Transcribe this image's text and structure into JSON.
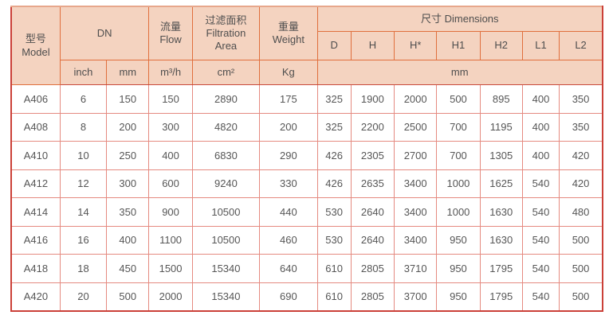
{
  "table": {
    "header": {
      "model_zh": "型号",
      "model_en": "Model",
      "dn": "DN",
      "flow_zh": "流量",
      "flow_en": "Flow",
      "filtration_zh": "过滤面积",
      "filtration_en_line1": "Filtration",
      "filtration_en_line2": "Area",
      "weight_zh": "重量",
      "weight_en": "Weight",
      "dimensions": "尺寸 Dimensions",
      "dim_columns": [
        "D",
        "H",
        "H*",
        "H1",
        "H2",
        "L1",
        "L2"
      ],
      "units": {
        "inch": "inch",
        "mm": "mm",
        "flow": "m³/h",
        "area": "cm²",
        "weight": "Kg",
        "dim_mm": "mm"
      }
    },
    "column_keys": [
      "model",
      "dn-inch",
      "dn-mm",
      "flow",
      "filtration-area",
      "weight",
      "d",
      "h",
      "h-star",
      "h1",
      "h2",
      "l1",
      "l2"
    ],
    "rows": [
      [
        "A406",
        "6",
        "150",
        "150",
        "2890",
        "175",
        "325",
        "1900",
        "2000",
        "500",
        "895",
        "400",
        "350"
      ],
      [
        "A408",
        "8",
        "200",
        "300",
        "4820",
        "200",
        "325",
        "2200",
        "2500",
        "700",
        "1195",
        "400",
        "350"
      ],
      [
        "A410",
        "10",
        "250",
        "400",
        "6830",
        "290",
        "426",
        "2305",
        "2700",
        "700",
        "1305",
        "400",
        "420"
      ],
      [
        "A412",
        "12",
        "300",
        "600",
        "9240",
        "330",
        "426",
        "2635",
        "3400",
        "1000",
        "1625",
        "540",
        "420"
      ],
      [
        "A414",
        "14",
        "350",
        "900",
        "10500",
        "440",
        "530",
        "2640",
        "3400",
        "1000",
        "1630",
        "540",
        "480"
      ],
      [
        "A416",
        "16",
        "400",
        "1100",
        "10500",
        "460",
        "530",
        "2640",
        "3400",
        "950",
        "1630",
        "540",
        "500"
      ],
      [
        "A418",
        "18",
        "450",
        "1500",
        "15340",
        "640",
        "610",
        "2805",
        "3710",
        "950",
        "1795",
        "540",
        "500"
      ],
      [
        "A420",
        "20",
        "500",
        "2000",
        "15340",
        "690",
        "610",
        "2805",
        "3700",
        "950",
        "1795",
        "540",
        "500"
      ]
    ]
  },
  "colors": {
    "header_background": "#f4d3c0",
    "header_border": "#e06f3d",
    "outer_border": "#cb4038",
    "grid_border": "#e58a80",
    "text": "#565656"
  }
}
